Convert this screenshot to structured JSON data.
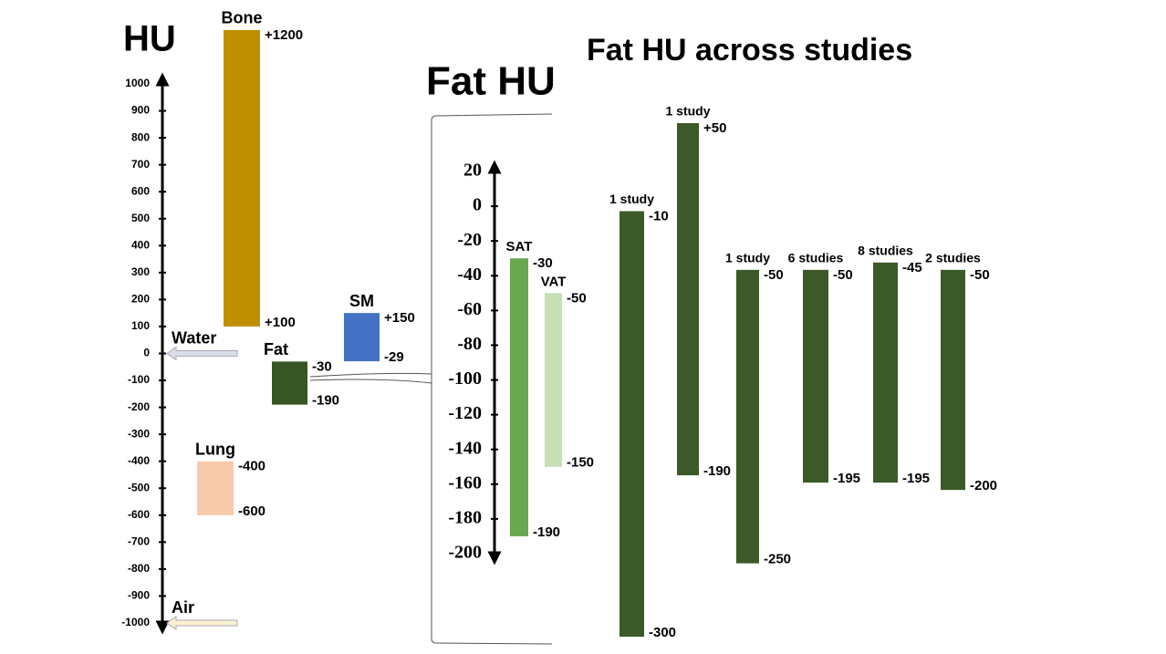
{
  "chart_data": [
    {
      "type": "range-bar",
      "title": "HU",
      "ylim": [
        -1000,
        1000
      ],
      "yticks": [
        1000,
        900,
        800,
        700,
        600,
        500,
        400,
        300,
        200,
        100,
        0,
        -100,
        -200,
        -300,
        -400,
        -500,
        -600,
        -700,
        -800,
        -900,
        -1000
      ],
      "bars": [
        {
          "label": "Bone",
          "color": "#bf8f00",
          "values": [
            100,
            1200
          ],
          "value_labels": [
            "+100",
            "+1200"
          ]
        },
        {
          "label": "SM",
          "color": "#4472c4",
          "values": [
            -29,
            150
          ],
          "value_labels": [
            "-29",
            "+150"
          ]
        },
        {
          "label": "Fat",
          "color": "#375623",
          "values": [
            -190,
            -30
          ]
        },
        {
          "label": "Lung",
          "color": "#f8cbad",
          "values": [
            -600,
            -400
          ]
        }
      ],
      "annotations": [
        {
          "text": "Water",
          "value": 0,
          "color": "#d9dde8"
        },
        {
          "text": "Air",
          "value": -1000,
          "color": "#fdf1d0"
        }
      ]
    },
    {
      "type": "range-bar",
      "title": "Fat HU",
      "ylim": [
        -200,
        20
      ],
      "yticks": [
        20,
        0,
        -20,
        -40,
        -60,
        -80,
        -100,
        -120,
        -140,
        -160,
        -180,
        -200
      ],
      "bars": [
        {
          "label": "SAT",
          "color": "#6aa84f",
          "values": [
            -190,
            -30
          ]
        },
        {
          "label": "VAT",
          "color": "#c6e0b4",
          "values": [
            -150,
            -50
          ]
        }
      ]
    },
    {
      "type": "range-bar",
      "title": "Fat HU across studies",
      "bars": [
        {
          "label": "1 study",
          "color": "#3b5a27",
          "values": [
            -300,
            -10
          ]
        },
        {
          "label": "1 study",
          "color": "#3b5a27",
          "values": [
            -190,
            50
          ],
          "value_labels": [
            "-190",
            "+50"
          ]
        },
        {
          "label": "1 study",
          "color": "#3b5a27",
          "values": [
            -250,
            -50
          ]
        },
        {
          "label": "6 studies",
          "color": "#3b5a27",
          "values": [
            -195,
            -50
          ]
        },
        {
          "label": "8 studies",
          "color": "#3b5a27",
          "values": [
            -195,
            -45
          ]
        },
        {
          "label": "2 studies",
          "color": "#3b5a27",
          "values": [
            -200,
            -50
          ]
        }
      ]
    }
  ]
}
